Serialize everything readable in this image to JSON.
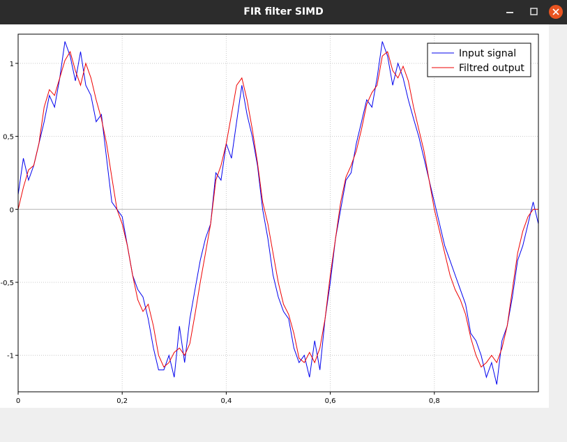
{
  "window": {
    "title": "FIR filter SIMD"
  },
  "chart_data": {
    "type": "line",
    "title": "",
    "xlabel": "",
    "ylabel": "",
    "xlim": [
      0,
      1
    ],
    "ylim": [
      -1.25,
      1.2
    ],
    "x_ticks": [
      0,
      0.2,
      0.4,
      0.6,
      0.8
    ],
    "x_tick_labels": [
      "0",
      "0,2",
      "0,4",
      "0,6",
      "0,8"
    ],
    "y_ticks": [
      1,
      0.5,
      0,
      -0.5,
      -1
    ],
    "y_tick_labels": [
      "1",
      "0,5",
      "0",
      "-0,5",
      "-1"
    ],
    "grid": true,
    "legend_position": "top-right",
    "series": [
      {
        "name": "Input signal",
        "color": "#0000ee",
        "x": [
          0,
          0.01,
          0.02,
          0.03,
          0.04,
          0.05,
          0.06,
          0.07,
          0.08,
          0.09,
          0.1,
          0.11,
          0.12,
          0.13,
          0.14,
          0.15,
          0.16,
          0.17,
          0.18,
          0.19,
          0.2,
          0.21,
          0.22,
          0.23,
          0.24,
          0.25,
          0.26,
          0.27,
          0.28,
          0.29,
          0.3,
          0.31,
          0.32,
          0.33,
          0.34,
          0.35,
          0.36,
          0.37,
          0.38,
          0.39,
          0.4,
          0.41,
          0.42,
          0.43,
          0.44,
          0.45,
          0.46,
          0.47,
          0.48,
          0.49,
          0.5,
          0.51,
          0.52,
          0.53,
          0.54,
          0.55,
          0.56,
          0.57,
          0.58,
          0.59,
          0.6,
          0.61,
          0.62,
          0.63,
          0.64,
          0.65,
          0.66,
          0.67,
          0.68,
          0.69,
          0.7,
          0.71,
          0.72,
          0.73,
          0.74,
          0.75,
          0.76,
          0.77,
          0.78,
          0.79,
          0.8,
          0.81,
          0.82,
          0.83,
          0.84,
          0.85,
          0.86,
          0.87,
          0.88,
          0.89,
          0.9,
          0.91,
          0.92,
          0.93,
          0.94,
          0.95,
          0.96,
          0.97,
          0.98,
          0.99,
          1.0
        ],
        "values": [
          0.1,
          0.35,
          0.2,
          0.3,
          0.45,
          0.6,
          0.78,
          0.7,
          0.9,
          1.15,
          1.05,
          0.88,
          1.08,
          0.85,
          0.78,
          0.6,
          0.65,
          0.35,
          0.05,
          0.0,
          -0.05,
          -0.25,
          -0.45,
          -0.55,
          -0.6,
          -0.75,
          -0.95,
          -1.1,
          -1.1,
          -1.0,
          -1.15,
          -0.8,
          -1.05,
          -0.75,
          -0.55,
          -0.35,
          -0.2,
          -0.1,
          0.25,
          0.2,
          0.45,
          0.35,
          0.6,
          0.85,
          0.65,
          0.5,
          0.3,
          0.0,
          -0.2,
          -0.45,
          -0.6,
          -0.7,
          -0.75,
          -0.95,
          -1.05,
          -1.0,
          -1.15,
          -0.9,
          -1.1,
          -0.75,
          -0.5,
          -0.2,
          0.0,
          0.2,
          0.25,
          0.45,
          0.6,
          0.75,
          0.7,
          0.9,
          1.15,
          1.05,
          0.85,
          1.0,
          0.9,
          0.75,
          0.62,
          0.5,
          0.35,
          0.2,
          0.05,
          -0.1,
          -0.25,
          -0.35,
          -0.45,
          -0.55,
          -0.65,
          -0.85,
          -0.9,
          -1.0,
          -1.15,
          -1.05,
          -1.2,
          -0.9,
          -0.8,
          -0.6,
          -0.35,
          -0.25,
          -0.1,
          0.05,
          -0.1
        ],
        "note_shape": "noisy sine"
      },
      {
        "name": "Filtred output",
        "color": "#ee0000",
        "x": [
          0,
          0.01,
          0.02,
          0.03,
          0.04,
          0.05,
          0.06,
          0.07,
          0.08,
          0.09,
          0.1,
          0.11,
          0.12,
          0.13,
          0.14,
          0.15,
          0.16,
          0.17,
          0.18,
          0.19,
          0.2,
          0.21,
          0.22,
          0.23,
          0.24,
          0.25,
          0.26,
          0.27,
          0.28,
          0.29,
          0.3,
          0.31,
          0.32,
          0.33,
          0.34,
          0.35,
          0.36,
          0.37,
          0.38,
          0.39,
          0.4,
          0.41,
          0.42,
          0.43,
          0.44,
          0.45,
          0.46,
          0.47,
          0.48,
          0.49,
          0.5,
          0.51,
          0.52,
          0.53,
          0.54,
          0.55,
          0.56,
          0.57,
          0.58,
          0.59,
          0.6,
          0.61,
          0.62,
          0.63,
          0.64,
          0.65,
          0.66,
          0.67,
          0.68,
          0.69,
          0.7,
          0.71,
          0.72,
          0.73,
          0.74,
          0.75,
          0.76,
          0.77,
          0.78,
          0.79,
          0.8,
          0.81,
          0.82,
          0.83,
          0.84,
          0.85,
          0.86,
          0.87,
          0.88,
          0.89,
          0.9,
          0.91,
          0.92,
          0.93,
          0.94,
          0.95,
          0.96,
          0.97,
          0.98,
          0.99,
          1.0
        ],
        "values": [
          0.0,
          0.15,
          0.27,
          0.3,
          0.45,
          0.7,
          0.82,
          0.78,
          0.9,
          1.02,
          1.08,
          0.95,
          0.85,
          1.0,
          0.9,
          0.75,
          0.62,
          0.45,
          0.22,
          0.0,
          -0.1,
          -0.25,
          -0.45,
          -0.62,
          -0.7,
          -0.65,
          -0.8,
          -1.0,
          -1.08,
          -1.05,
          -0.98,
          -0.95,
          -1.0,
          -0.92,
          -0.72,
          -0.5,
          -0.3,
          -0.1,
          0.2,
          0.3,
          0.45,
          0.65,
          0.85,
          0.9,
          0.75,
          0.55,
          0.32,
          0.05,
          -0.1,
          -0.3,
          -0.5,
          -0.65,
          -0.72,
          -0.85,
          -1.02,
          -1.05,
          -0.98,
          -1.05,
          -0.95,
          -0.75,
          -0.45,
          -0.2,
          0.05,
          0.22,
          0.3,
          0.4,
          0.55,
          0.72,
          0.8,
          0.85,
          1.05,
          1.08,
          0.95,
          0.9,
          0.98,
          0.88,
          0.7,
          0.55,
          0.4,
          0.2,
          0.0,
          -0.15,
          -0.3,
          -0.45,
          -0.55,
          -0.62,
          -0.72,
          -0.88,
          -1.0,
          -1.08,
          -1.05,
          -1.0,
          -1.05,
          -0.95,
          -0.8,
          -0.55,
          -0.3,
          -0.15,
          -0.05,
          0.0,
          0.0
        ]
      }
    ]
  }
}
